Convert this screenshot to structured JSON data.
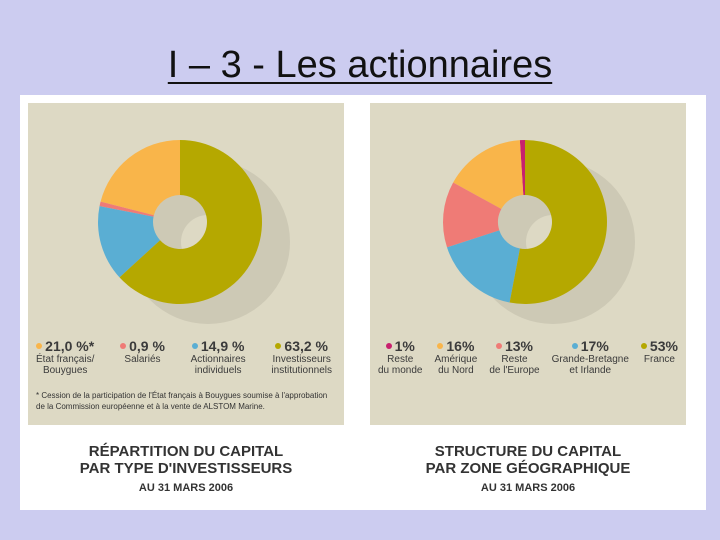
{
  "title": "I – 3 - Les actionnaires",
  "chart_data": [
    {
      "type": "pie",
      "title": "RÉPARTITION DU CAPITAL\nPAR TYPE D'INVESTISSEURS",
      "subtitle": "AU 31 MARS 2006",
      "categories": [
        "État français/\nBouygues",
        "Salariés",
        "Actionnaires\nindividuels",
        "Investisseurs\ninstitutionnels"
      ],
      "values": [
        21.0,
        0.9,
        14.9,
        63.2
      ],
      "value_labels": [
        "21,0 %*",
        "0,9 %",
        "14,9 %",
        "63,2 %"
      ],
      "colors": [
        "#f9b54a",
        "#ef7b76",
        "#5aaed3",
        "#b5a800"
      ],
      "annotation": "* Cession de la participation de l'État français à Bouygues soumise à l'approbation de la Commission européenne et à la vente de ALSTOM Marine."
    },
    {
      "type": "pie",
      "title": "STRUCTURE DU CAPITAL\nPAR ZONE GÉOGRAPHIQUE",
      "subtitle": "AU 31 MARS 2006",
      "categories": [
        "Reste\ndu monde",
        "Amérique\ndu Nord",
        "Reste\nde l'Europe",
        "Grande-Bretagne\net Irlande",
        "France"
      ],
      "values": [
        1,
        16,
        13,
        17,
        53
      ],
      "value_labels": [
        "1%",
        "16%",
        "13%",
        "17%",
        "53%"
      ],
      "colors": [
        "#c8206e",
        "#f9b54a",
        "#ef7b76",
        "#5aaed3",
        "#b5a800"
      ]
    }
  ]
}
